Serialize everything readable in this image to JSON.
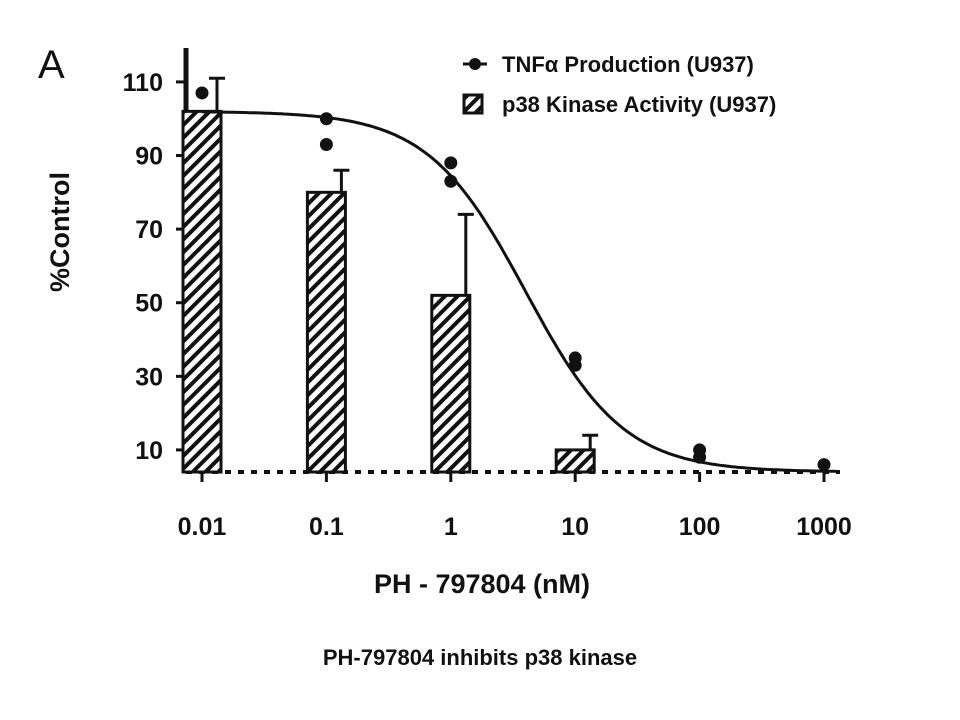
{
  "panel_label": "A",
  "caption": "PH-797804 inhibits p38 kinase",
  "chart_data": {
    "type": "bar",
    "xlabel": "PH - 797804 (nM)",
    "ylabel": "%Control",
    "x_scale": "log",
    "categories": [
      "0.01",
      "0.1",
      "1",
      "10",
      "100",
      "1000"
    ],
    "yticks": [
      "110",
      "90",
      "70",
      "50",
      "30",
      "10"
    ],
    "ylim": [
      2,
      117
    ],
    "legend_position": "top-right",
    "series": [
      {
        "name": "TNFα Production (U937)",
        "kind": "scatter-with-fit",
        "points": [
          {
            "x": 0.01,
            "y": 107
          },
          {
            "x": 0.1,
            "y": 100
          },
          {
            "x": 0.1,
            "y": 93
          },
          {
            "x": 1,
            "y": 88
          },
          {
            "x": 1,
            "y": 83
          },
          {
            "x": 10,
            "y": 35
          },
          {
            "x": 10,
            "y": 33
          },
          {
            "x": 100,
            "y": 10
          },
          {
            "x": 100,
            "y": 8
          },
          {
            "x": 1000,
            "y": 6
          }
        ],
        "fit": {
          "top": 102,
          "bottom": 4,
          "ic50": 4.0,
          "hill": 1.1
        }
      },
      {
        "name": "p38 Kinase Activity (U937)",
        "kind": "bar",
        "values": [
          102,
          80,
          52,
          10,
          3,
          3
        ],
        "errors": [
          9,
          6,
          22,
          4,
          0,
          0
        ]
      }
    ]
  }
}
